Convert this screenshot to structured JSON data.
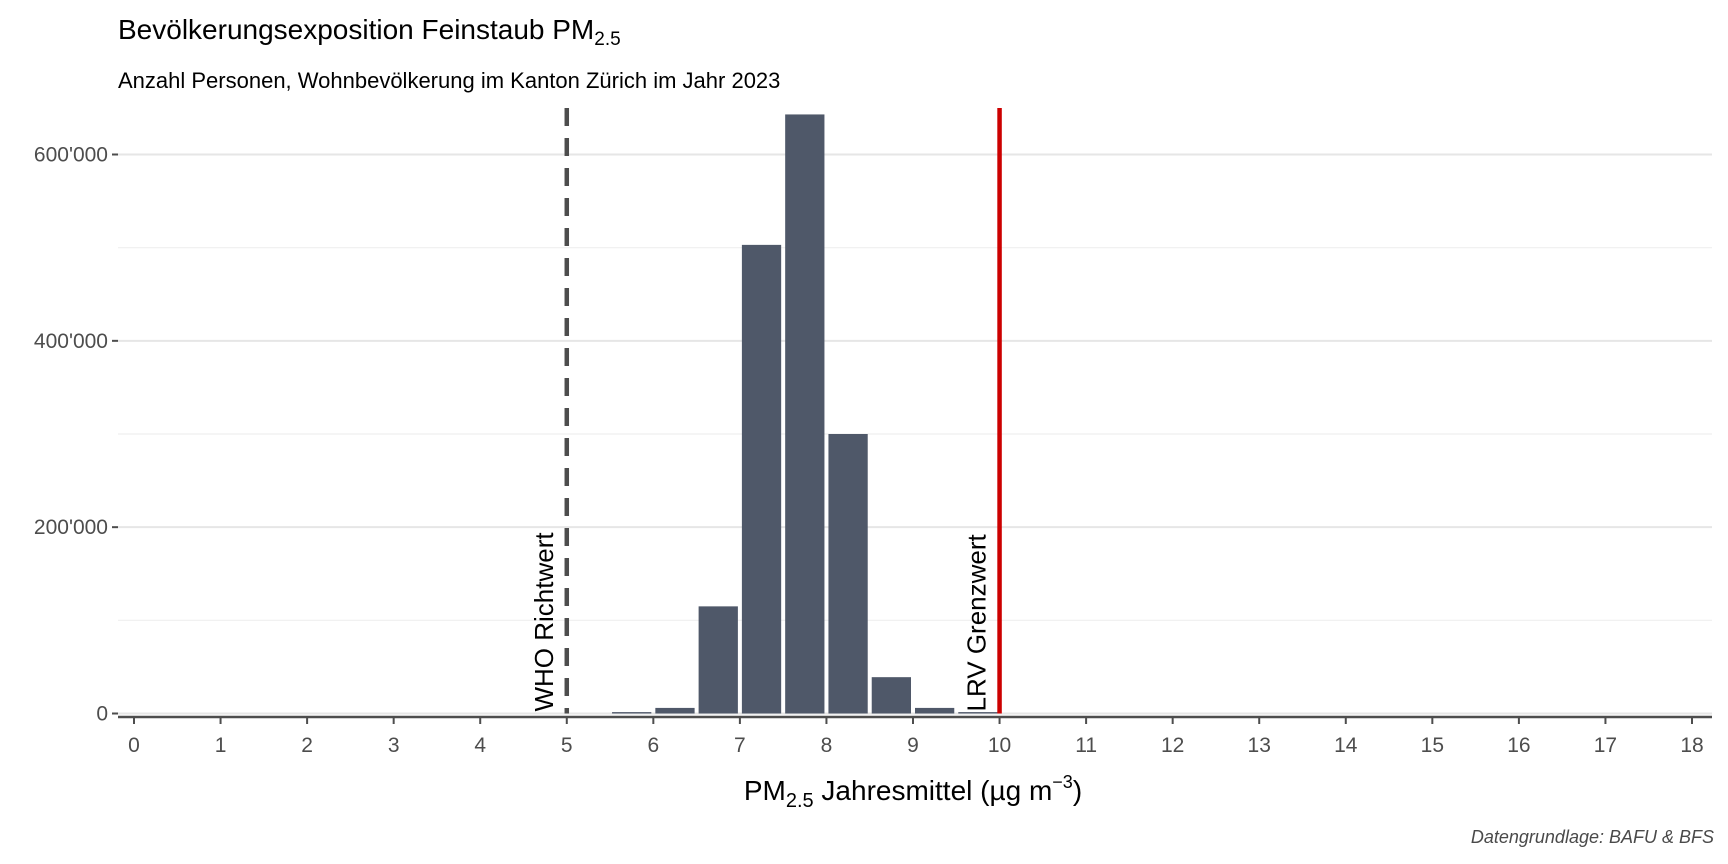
{
  "title_main": "Bevölkerungsexposition Feinstaub PM",
  "title_sub": "2.5",
  "subtitle": "Anzahl Personen, Wohnbevölkerung im Kanton Zürich im Jahr 2023",
  "caption": "Datengrundlage: BAFU & BFS",
  "colors": {
    "bar": "#4f5869",
    "who_line": "#4d4d4d",
    "lrv_line": "#cc0000",
    "grid": "#e6e6e6",
    "axis": "#4d4d4d"
  },
  "chart_data": {
    "type": "bar",
    "title": "Bevölkerungsexposition Feinstaub PM2.5",
    "subtitle": "Anzahl Personen, Wohnbevölkerung im Kanton Zürich im Jahr 2023",
    "xlabel": {
      "pre": "PM",
      "sub": "2.5",
      "mid": " Jahresmittel (µg m",
      "sup": "−3",
      "post": ")"
    },
    "ylabel": "",
    "xlim": [
      0,
      18
    ],
    "ylim": [
      0,
      650000
    ],
    "x": [
      5.75,
      6.25,
      6.75,
      7.25,
      7.75,
      8.25,
      8.75,
      9.25,
      9.75
    ],
    "values": [
      1500,
      6000,
      115000,
      503000,
      643000,
      300000,
      39000,
      6000,
      1500
    ],
    "bar_width": 0.5,
    "x_ticks": [
      0,
      1,
      2,
      3,
      4,
      5,
      6,
      7,
      8,
      9,
      10,
      11,
      12,
      13,
      14,
      15,
      16,
      17,
      18
    ],
    "x_tick_labels": [
      "0",
      "1",
      "2",
      "3",
      "4",
      "5",
      "6",
      "7",
      "8",
      "9",
      "10",
      "11",
      "12",
      "13",
      "14",
      "15",
      "16",
      "17",
      "18"
    ],
    "y_ticks": [
      0,
      200000,
      400000,
      600000
    ],
    "y_tick_labels": [
      "0",
      "200'000",
      "400'000",
      "600'000"
    ],
    "y_minor_ticks": [
      100000,
      300000,
      500000
    ],
    "grid": "horizontal",
    "reference_lines": [
      {
        "x": 5,
        "label": "WHO Richtwert",
        "style": "dashed"
      },
      {
        "x": 10,
        "label": "LRV Grenzwert",
        "style": "solid"
      }
    ]
  }
}
